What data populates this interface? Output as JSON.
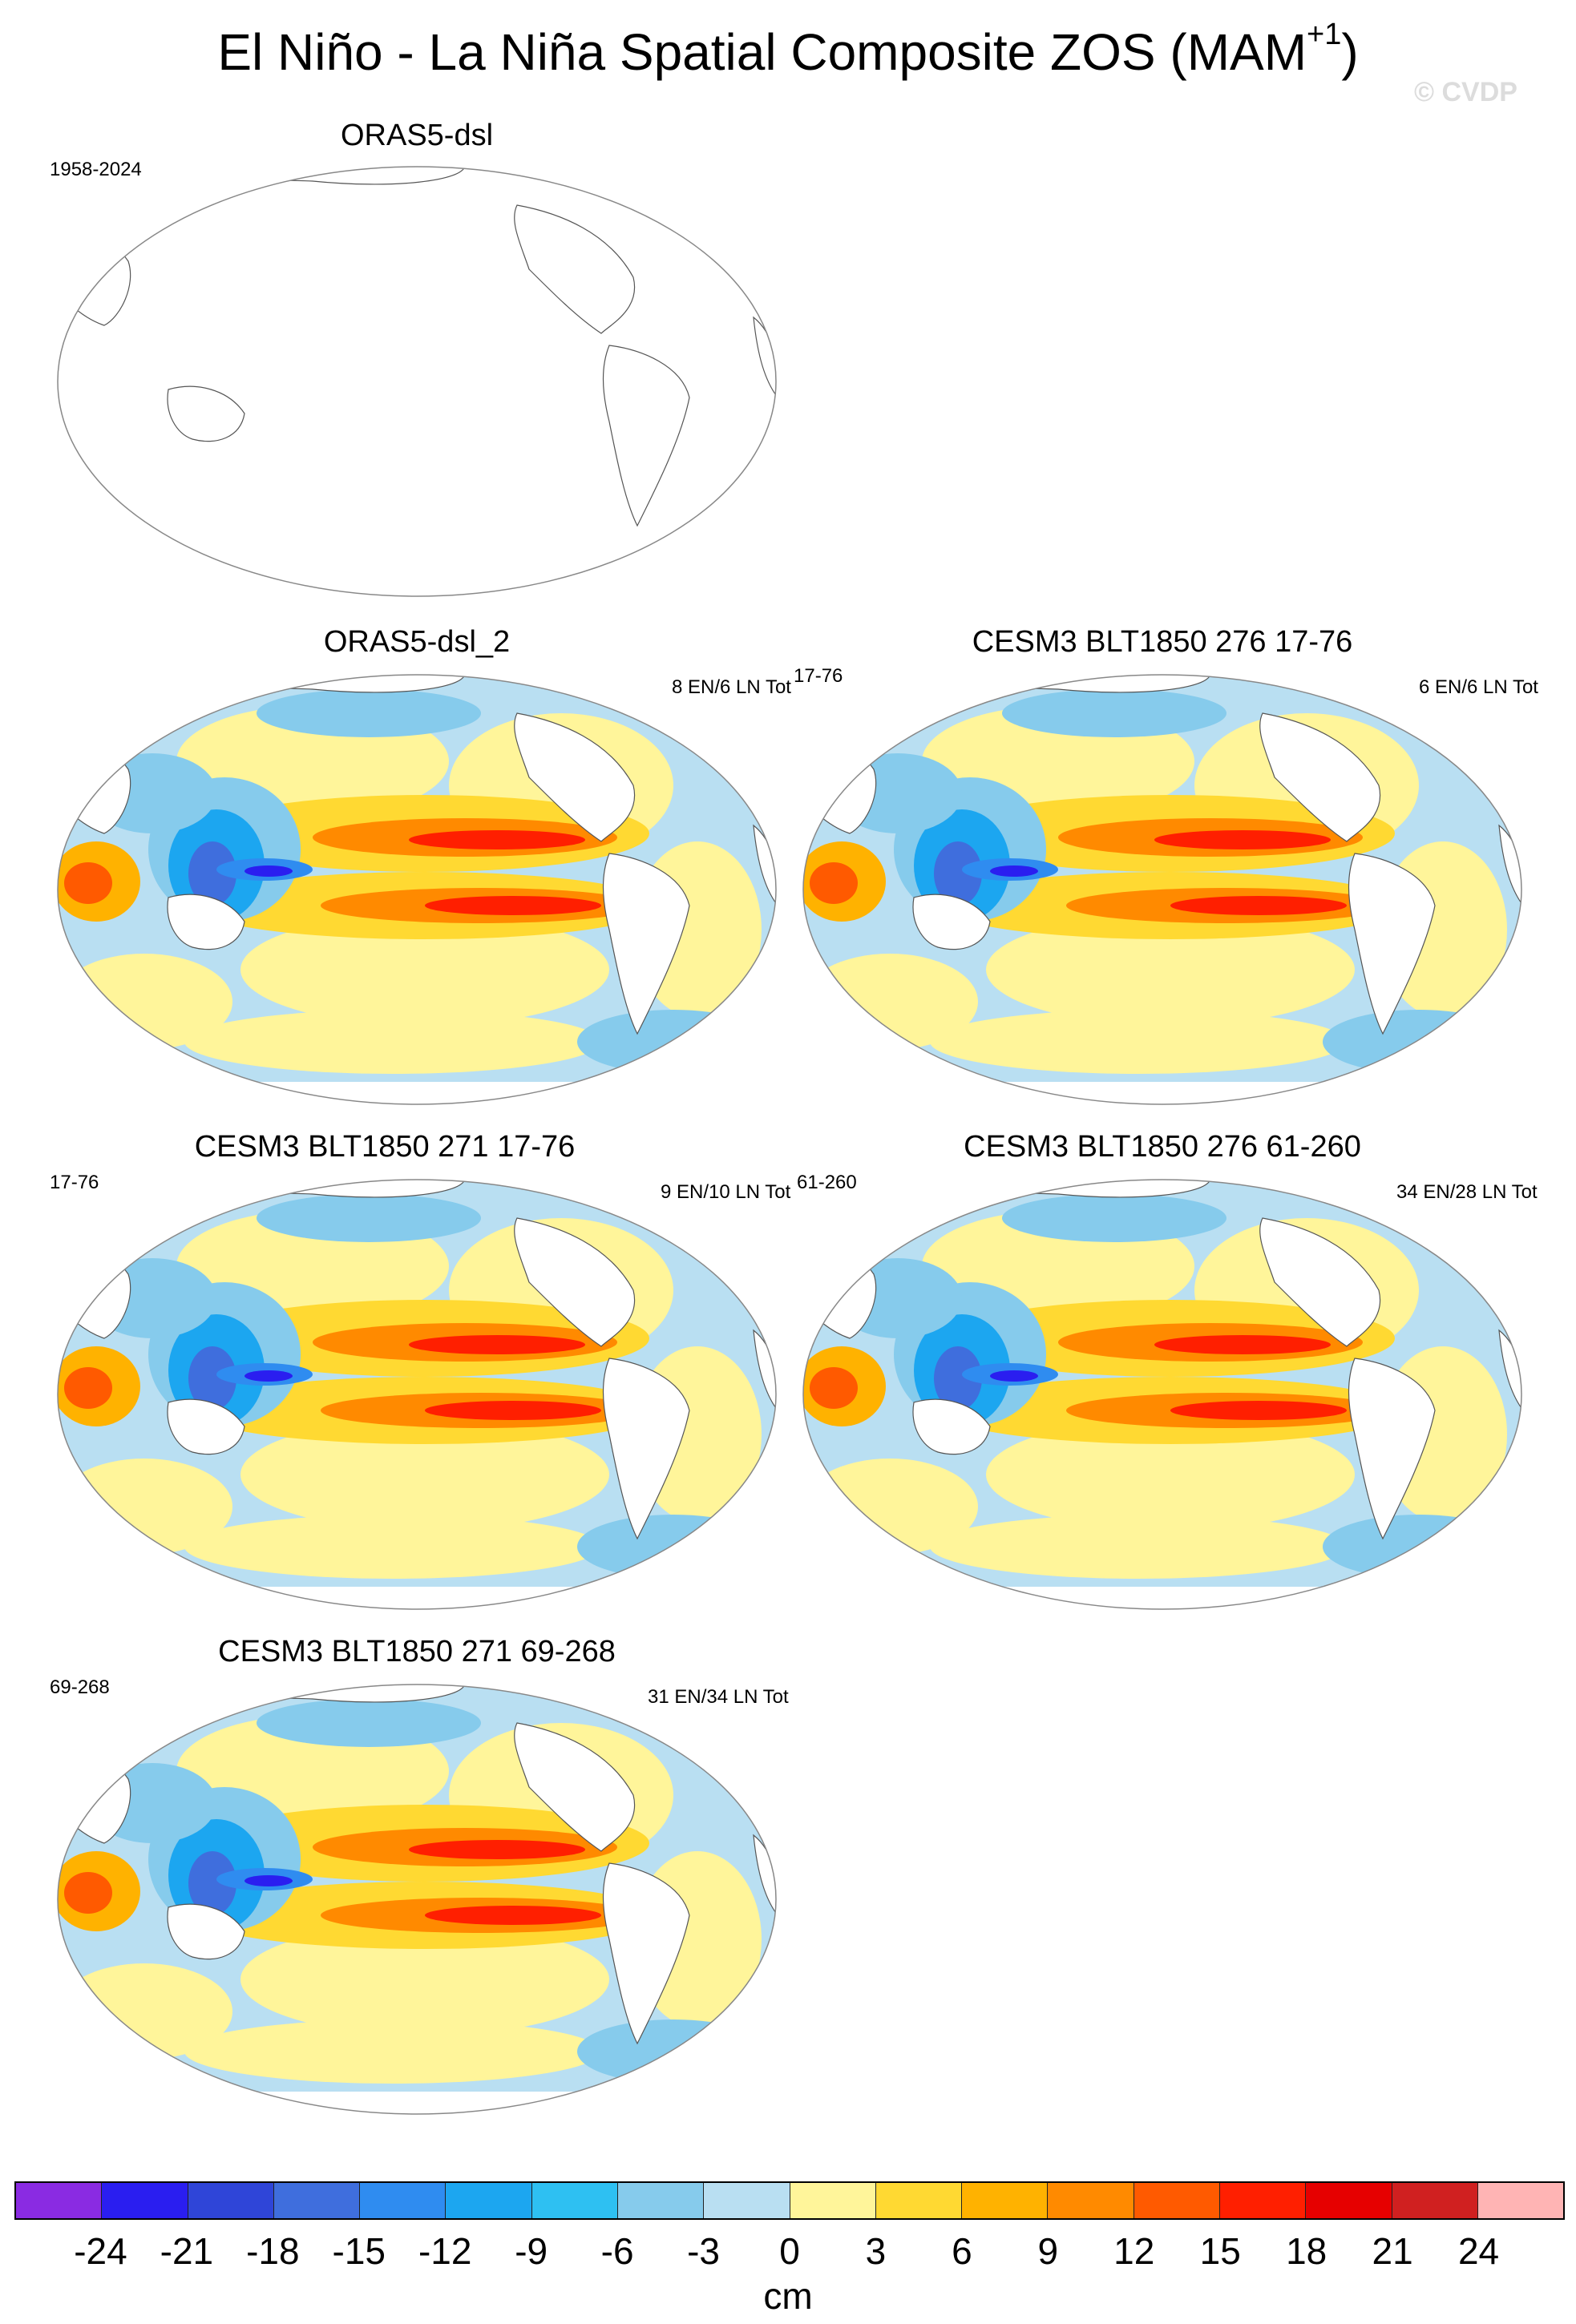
{
  "title": "El Niño - La Niña Spatial Composite ZOS (MAM",
  "title_superscript": "+1",
  "title_close": ")",
  "watermark": "© CVDP",
  "panels": [
    {
      "title": "ORAS5-dsl",
      "left_label": "1958-2024",
      "right_label": "",
      "empty": true
    },
    {
      "title": "ORAS5-dsl_2",
      "left_label": "",
      "right_label": "8 EN/6 LN Tot",
      "empty": false
    },
    {
      "title": "CESM3 BLT1850 276 17-76",
      "left_label": "17-76",
      "right_label": "6 EN/6 LN Tot",
      "empty": false
    },
    {
      "title": "CESM3 BLT1850 271 17-76",
      "left_label": "17-76",
      "right_label": "9 EN/10 LN Tot",
      "empty": false
    },
    {
      "title": "CESM3 BLT1850 276 61-260",
      "left_label": "61-260",
      "right_label": "34 EN/28 LN Tot",
      "empty": false
    },
    {
      "title": "CESM3 BLT1850 271 69-268",
      "left_label": "69-268",
      "right_label": "31 EN/34 LN Tot",
      "empty": false
    }
  ],
  "colorbar": {
    "colors": [
      "#8A2BE2",
      "#2A1EF0",
      "#2F45D8",
      "#3F6EDD",
      "#2F8CF0",
      "#1CA6F0",
      "#2EC0F2",
      "#86CBEC",
      "#B9DFF2",
      "#FFF59A",
      "#FFD932",
      "#FFB200",
      "#FF8A00",
      "#FF5A00",
      "#FF1F00",
      "#E60000",
      "#D02020",
      "#FFB4B4"
    ],
    "labels": [
      "-24",
      "-21",
      "-18",
      "-15",
      "-12",
      "-9",
      "-6",
      "-3",
      "0",
      "3",
      "6",
      "9",
      "12",
      "15",
      "18",
      "21",
      "24"
    ],
    "units": "cm"
  }
}
